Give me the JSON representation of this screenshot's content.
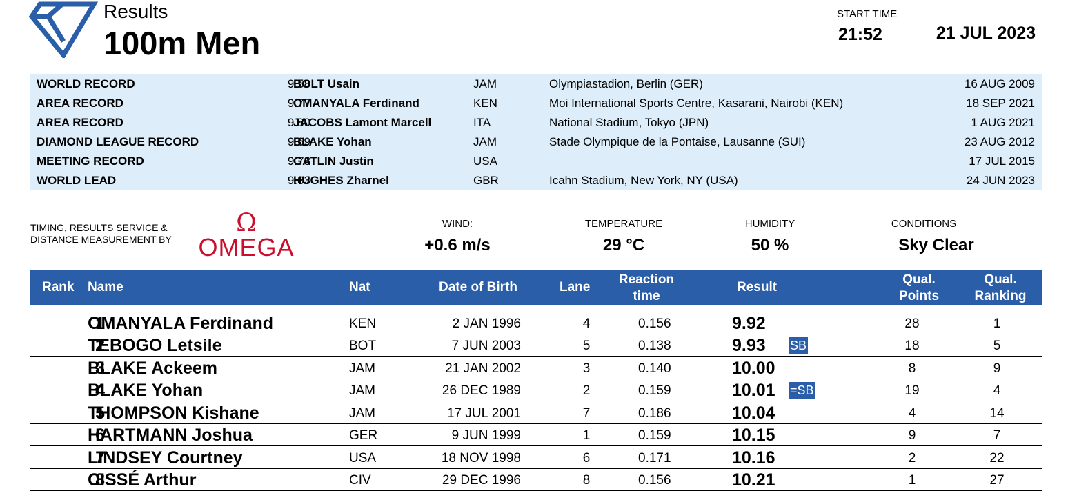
{
  "header": {
    "results_label": "Results",
    "event_title": "100m Men",
    "start_time_label": "START TIME",
    "start_time": "21:52",
    "date": "21 JUL 2023",
    "logo_icon": "diamond-league-icon"
  },
  "records": [
    {
      "type": "WORLD RECORD",
      "mark": "9.58",
      "athlete": "BOLT Usain",
      "nat": "JAM",
      "venue": "Olympiastadion, Berlin (GER)",
      "date": "16 AUG 2009"
    },
    {
      "type": "AREA RECORD",
      "mark": "9.77",
      "athlete": "OMANYALA Ferdinand",
      "nat": "KEN",
      "venue": "Moi International Sports Centre, Kasarani, Nairobi (KEN)",
      "date": "18 SEP 2021"
    },
    {
      "type": "AREA RECORD",
      "mark": "9.80",
      "athlete": "JACOBS Lamont Marcell",
      "nat": "ITA",
      "venue": "National Stadium, Tokyo (JPN)",
      "date": "1 AUG 2021"
    },
    {
      "type": "DIAMOND LEAGUE RECORD",
      "mark": "9.69",
      "athlete": "BLAKE Yohan",
      "nat": "JAM",
      "venue": "Stade Olympique de la Pontaise, Lausanne (SUI)",
      "date": "23 AUG 2012"
    },
    {
      "type": "MEETING RECORD",
      "mark": "9.78",
      "athlete": "GATLIN Justin",
      "nat": "USA",
      "venue": "",
      "date": "17 JUL 2015"
    },
    {
      "type": "WORLD LEAD",
      "mark": "9.83",
      "athlete": "HUGHES Zharnel",
      "nat": "GBR",
      "venue": "Icahn Stadium, New York, NY (USA)",
      "date": "24 JUN 2023"
    }
  ],
  "timing": {
    "label_line1": "TIMING, RESULTS SERVICE &",
    "label_line2": "DISTANCE MEASUREMENT BY",
    "brand": "OMEGA",
    "brand_color": "#c8102e"
  },
  "conditions": {
    "wind_label": "WIND:",
    "wind": "+0.6 m/s",
    "temperature_label": "TEMPERATURE",
    "temperature": "29 °C",
    "humidity_label": "HUMIDITY",
    "humidity": "50 %",
    "conditions_label": "CONDITIONS",
    "conditions": "Sky Clear"
  },
  "table": {
    "headers": {
      "rank": "Rank",
      "name": "Name",
      "nat": "Nat",
      "dob": "Date of Birth",
      "lane": "Lane",
      "reaction_line1": "Reaction",
      "reaction_line2": "time",
      "result": "Result",
      "qual_points_line1": "Qual.",
      "qual_points_line2": "Points",
      "qual_ranking_line1": "Qual.",
      "qual_ranking_line2": "Ranking"
    },
    "header_color": "#2a5ea8",
    "rows": [
      {
        "rank": "1",
        "name": "OMANYALA Ferdinand",
        "nat": "KEN",
        "dob": "2 JAN 1996",
        "lane": "4",
        "reaction": "0.156",
        "result": "9.92",
        "badge": "",
        "points": "28",
        "ranking": "1"
      },
      {
        "rank": "2",
        "name": "TEBOGO Letsile",
        "nat": "BOT",
        "dob": "7 JUN 2003",
        "lane": "5",
        "reaction": "0.138",
        "result": "9.93",
        "badge": "SB",
        "points": "18",
        "ranking": "5"
      },
      {
        "rank": "3",
        "name": "BLAKE Ackeem",
        "nat": "JAM",
        "dob": "21 JAN 2002",
        "lane": "3",
        "reaction": "0.140",
        "result": "10.00",
        "badge": "",
        "points": "8",
        "ranking": "9"
      },
      {
        "rank": "4",
        "name": "BLAKE Yohan",
        "nat": "JAM",
        "dob": "26 DEC 1989",
        "lane": "2",
        "reaction": "0.159",
        "result": "10.01",
        "badge": "=SB",
        "points": "19",
        "ranking": "4"
      },
      {
        "rank": "5",
        "name": "THOMPSON Kishane",
        "nat": "JAM",
        "dob": "17 JUL 2001",
        "lane": "7",
        "reaction": "0.186",
        "result": "10.04",
        "badge": "",
        "points": "4",
        "ranking": "14"
      },
      {
        "rank": "6",
        "name": "HARTMANN Joshua",
        "nat": "GER",
        "dob": "9 JUN 1999",
        "lane": "1",
        "reaction": "0.159",
        "result": "10.15",
        "badge": "",
        "points": "9",
        "ranking": "7"
      },
      {
        "rank": "7",
        "name": "LINDSEY Courtney",
        "nat": "USA",
        "dob": "18 NOV 1998",
        "lane": "6",
        "reaction": "0.171",
        "result": "10.16",
        "badge": "",
        "points": "2",
        "ranking": "22"
      },
      {
        "rank": "8",
        "name": "CISSÉ Arthur",
        "nat": "CIV",
        "dob": "29 DEC 1996",
        "lane": "8",
        "reaction": "0.156",
        "result": "10.21",
        "badge": "",
        "points": "1",
        "ranking": "27"
      }
    ]
  }
}
